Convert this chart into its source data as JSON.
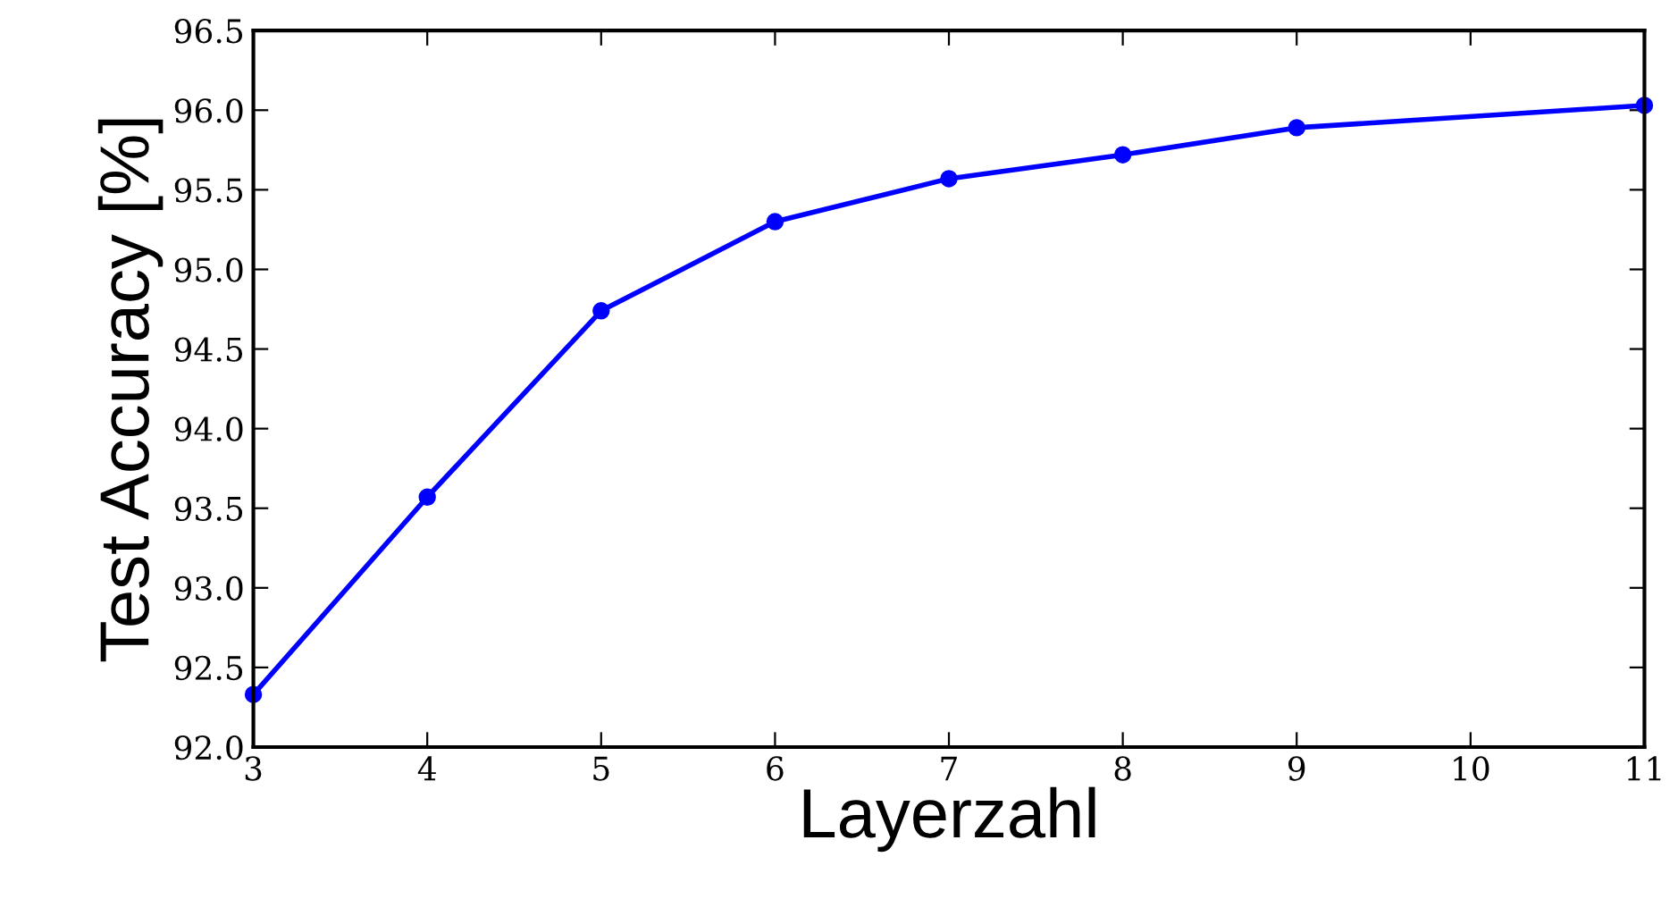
{
  "chart_data": {
    "type": "line",
    "xlabel": "Layerzahl",
    "ylabel": "Test Accuracy [%]",
    "x": [
      3,
      4,
      5,
      6,
      7,
      8,
      9,
      11
    ],
    "series": [
      {
        "color": "#0000ff",
        "values": [
          92.33,
          93.57,
          94.74,
          95.3,
          95.57,
          95.72,
          95.89,
          96.03
        ]
      }
    ],
    "xlim": [
      3,
      11
    ],
    "xticks": [
      3,
      4,
      5,
      6,
      7,
      8,
      9,
      10,
      11
    ],
    "ylim": [
      92.0,
      96.5
    ],
    "yticks": [
      {
        "value": 92.0,
        "label": "92.0"
      },
      {
        "value": 92.5,
        "label": "92.5"
      },
      {
        "value": 93.0,
        "label": "93.0"
      },
      {
        "value": 93.5,
        "label": "93.5"
      },
      {
        "value": 94.0,
        "label": "94.0"
      },
      {
        "value": 94.5,
        "label": "94.5"
      },
      {
        "value": 95.0,
        "label": "95.0"
      },
      {
        "value": 95.5,
        "label": "95.5"
      },
      {
        "value": 96.0,
        "label": "96.0"
      },
      {
        "value": 96.5,
        "label": "96.5"
      }
    ],
    "grid": false,
    "legend": false,
    "marker": "circle",
    "line_style": "solid"
  }
}
